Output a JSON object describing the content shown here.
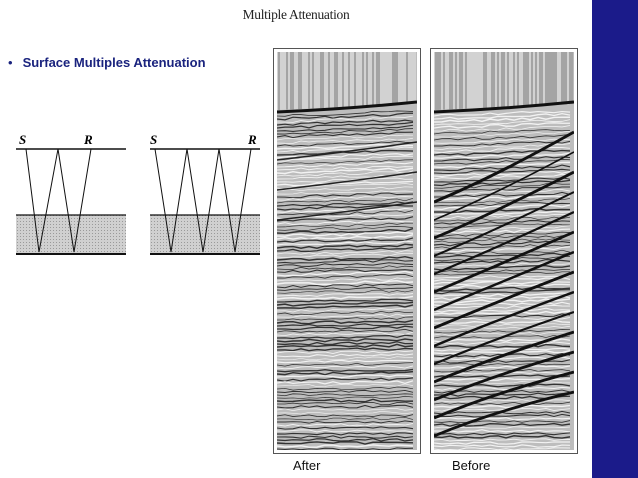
{
  "slide": {
    "title": "Multiple Attenuation",
    "bullet": "Surface Multiples Attenuation",
    "accent_color": "#1b1b8a",
    "bullet_color": "#1a237e"
  },
  "diagrams": [
    {
      "source_label": "S",
      "receiver_label": "R"
    },
    {
      "source_label": "S",
      "receiver_label": "R"
    }
  ],
  "panels": {
    "after_label": "After",
    "before_label": "Before"
  }
}
